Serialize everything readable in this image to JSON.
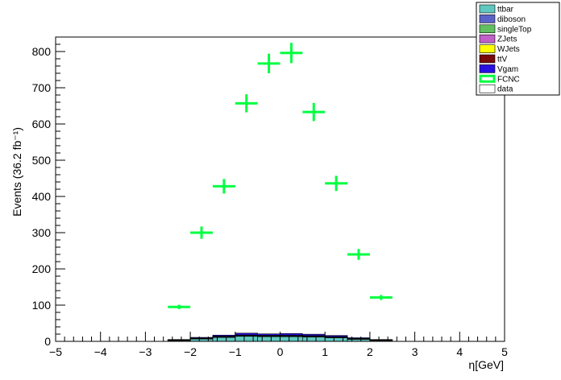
{
  "chart_data": {
    "type": "bar",
    "xlabel": "η[GeV]",
    "ylabel": "Events (36.2 fb⁻¹)",
    "xlim": [
      -5,
      5
    ],
    "ylim": [
      0,
      840
    ],
    "x_ticks": [
      "−5",
      "−4",
      "−3",
      "−2",
      "−1",
      "0",
      "1",
      "2",
      "3",
      "4",
      "5"
    ],
    "y_ticks": [
      "0",
      "100",
      "200",
      "300",
      "400",
      "500",
      "600",
      "700",
      "800"
    ],
    "grid": false,
    "legend_position": "top-right",
    "bin_edges": [
      -2.5,
      -2.0,
      -1.5,
      -1.0,
      -0.5,
      0.0,
      0.5,
      1.0,
      1.5,
      2.0,
      2.5
    ],
    "stack": [
      {
        "name": "ttbar",
        "color": "#5fc8c0",
        "values": [
          3,
          7,
          11,
          14,
          13,
          13,
          12,
          10,
          6,
          3
        ]
      },
      {
        "name": "diboson",
        "color": "#5b62c8",
        "values": [
          0.3,
          0.6,
          1,
          1,
          1,
          1,
          1,
          1,
          0.6,
          0.3
        ]
      },
      {
        "name": "singleTop",
        "color": "#60c060",
        "values": [
          0.3,
          0.5,
          0.8,
          1,
          1,
          1,
          1,
          0.8,
          0.5,
          0.3
        ]
      },
      {
        "name": "ZJets",
        "color": "#c060c8",
        "values": [
          0.2,
          0.4,
          0.6,
          0.8,
          0.8,
          0.8,
          0.8,
          0.6,
          0.4,
          0.2
        ]
      },
      {
        "name": "WJets",
        "color": "#ffff00",
        "values": [
          0.2,
          0.3,
          0.5,
          0.6,
          0.6,
          0.6,
          0.6,
          0.5,
          0.3,
          0.2
        ]
      },
      {
        "name": "ttV",
        "color": "#780a0a",
        "values": [
          0.1,
          0.2,
          0.3,
          0.3,
          0.3,
          0.3,
          0.3,
          0.3,
          0.2,
          0.1
        ]
      },
      {
        "name": "Vgam",
        "color": "#2a10e0",
        "values": [
          1,
          2,
          3,
          5,
          4,
          5,
          4,
          3,
          2,
          1
        ]
      }
    ],
    "signal": {
      "name": "FCNC",
      "color": "#00ff40",
      "x": [
        -2.25,
        -1.75,
        -1.25,
        -0.75,
        -0.25,
        0.25,
        0.75,
        1.25,
        1.75,
        2.25
      ],
      "values": [
        95,
        300,
        428,
        657,
        767,
        796,
        633,
        436,
        240,
        121
      ],
      "errors": [
        6,
        17,
        20,
        25,
        27,
        28,
        25,
        21,
        15,
        7
      ]
    },
    "legend": [
      {
        "label": "ttbar",
        "color": "#5fc8c0",
        "style": "fill"
      },
      {
        "label": "diboson",
        "color": "#5b62c8",
        "style": "fill"
      },
      {
        "label": "singleTop",
        "color": "#60c060",
        "style": "fill"
      },
      {
        "label": "ZJets",
        "color": "#c060c8",
        "style": "fill"
      },
      {
        "label": "WJets",
        "color": "#ffff00",
        "style": "fill"
      },
      {
        "label": "ttV",
        "color": "#780a0a",
        "style": "fill"
      },
      {
        "label": "Vgam",
        "color": "#2a10e0",
        "style": "fill"
      },
      {
        "label": "FCNC",
        "color": "#00ff40",
        "style": "line"
      },
      {
        "label": "data",
        "color": "#ffffff",
        "style": "fill"
      }
    ]
  }
}
